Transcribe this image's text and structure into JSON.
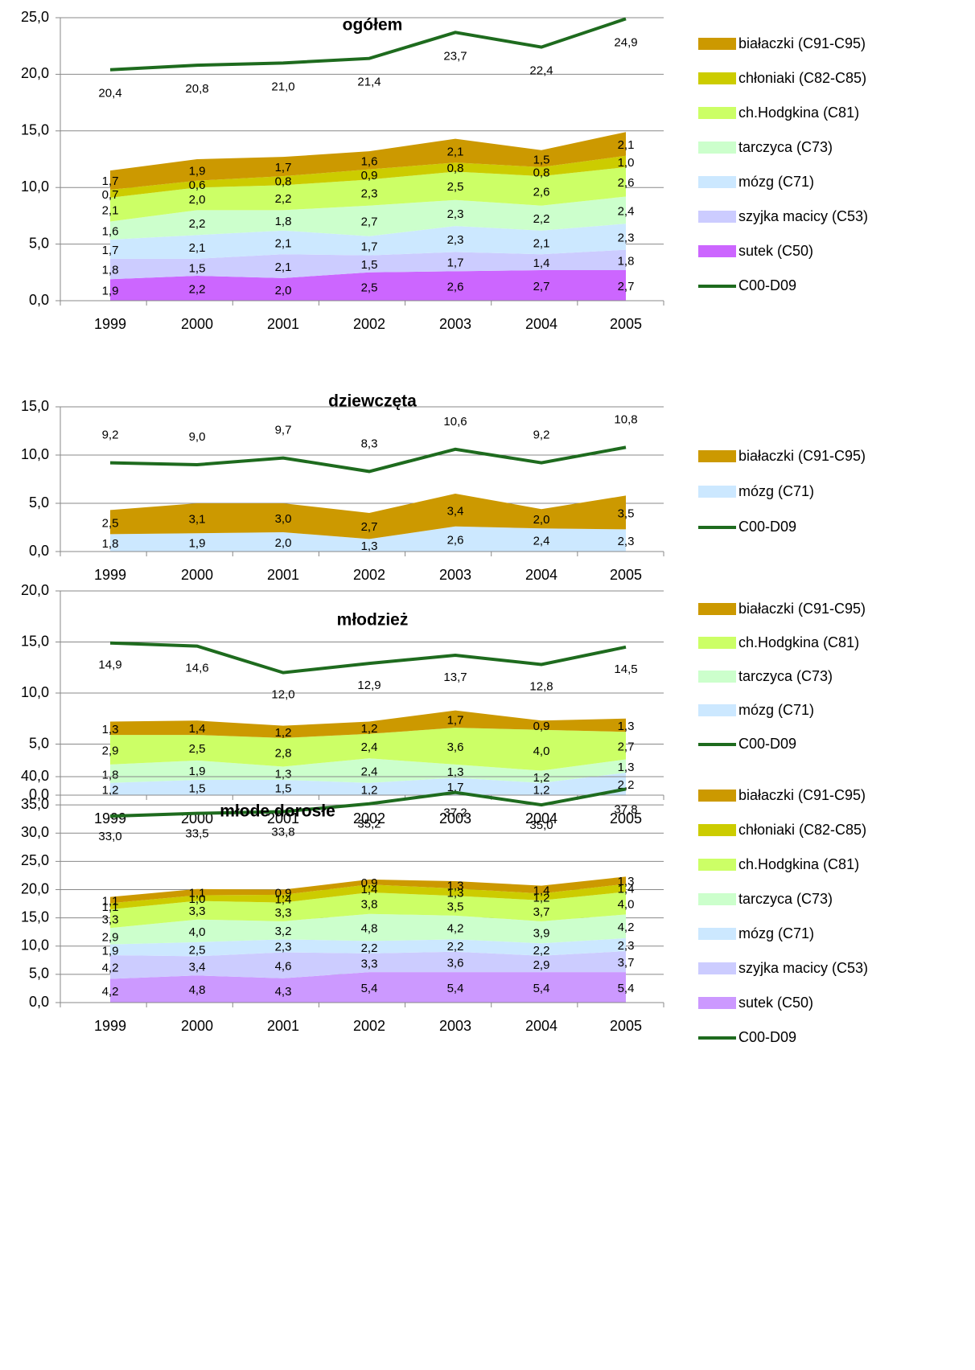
{
  "chart_data": [
    {
      "type": "stacked_area",
      "title": "ogółem",
      "categories": [
        "1999",
        "2000",
        "2001",
        "2002",
        "2003",
        "2004",
        "2005"
      ],
      "ylim": [
        0,
        25
      ],
      "yticks": [
        {
          "value": 0,
          "label": "0,0"
        },
        {
          "value": 5,
          "label": "5,0"
        },
        {
          "value": 10,
          "label": "10,0"
        },
        {
          "value": 15,
          "label": "15,0"
        },
        {
          "value": 20,
          "label": "20,0"
        },
        {
          "value": 25,
          "label": "25,0"
        }
      ],
      "grid": true,
      "series": [
        {
          "name": "sutek (C50)",
          "color": "#cc66ff",
          "values": [
            1.9,
            2.2,
            2.0,
            2.5,
            2.6,
            2.7,
            2.7
          ],
          "value_labels": [
            "1,9",
            "2,2",
            "2,0",
            "2,5",
            "2,6",
            "2,7",
            "2,7"
          ]
        },
        {
          "name": "szyjka macicy (C53)",
          "color": "#ccccff",
          "values": [
            1.8,
            1.5,
            2.1,
            1.5,
            1.7,
            1.4,
            1.8
          ],
          "value_labels": [
            "1,8",
            "1,5",
            "2,1",
            "1,5",
            "1,7",
            "1,4",
            "1,8"
          ]
        },
        {
          "name": "mózg (C71)",
          "color": "#cce8ff",
          "values": [
            1.7,
            2.1,
            2.1,
            1.7,
            2.3,
            2.1,
            2.3
          ],
          "value_labels": [
            "1,7",
            "2,1",
            "2,1",
            "1,7",
            "2,3",
            "2,1",
            "2,3"
          ]
        },
        {
          "name": "tarczyca (C73)",
          "color": "#ccffcc",
          "values": [
            1.6,
            2.2,
            1.8,
            2.7,
            2.3,
            2.2,
            2.4
          ],
          "value_labels": [
            "1,6",
            "2,2",
            "1,8",
            "2,7",
            "2,3",
            "2,2",
            "2,4"
          ]
        },
        {
          "name": "ch.Hodgkina (C81)",
          "color": "#ccff66",
          "values": [
            2.1,
            2.0,
            2.2,
            2.3,
            2.5,
            2.6,
            2.6
          ],
          "value_labels": [
            "2,1",
            "2,0",
            "2,2",
            "2,3",
            "2,5",
            "2,6",
            "2,6"
          ]
        },
        {
          "name": "chłoniaki (C82-C85)",
          "color": "#cccc00",
          "values": [
            0.7,
            0.6,
            0.8,
            0.9,
            0.8,
            0.8,
            1.0
          ],
          "value_labels": [
            "0,7",
            "0,6",
            "0,8",
            "0,9",
            "0,8",
            "0,8",
            "1,0"
          ]
        },
        {
          "name": "białaczki (C91-C95)",
          "color": "#cc9900",
          "values": [
            1.7,
            1.9,
            1.7,
            1.6,
            2.1,
            1.5,
            2.1
          ],
          "value_labels": [
            "1,7",
            "1,9",
            "1,7",
            "1,6",
            "2,1",
            "1,5",
            "2,1"
          ]
        },
        {
          "name": "C00-D09",
          "type": "line",
          "color": "#1e6b1e",
          "values": [
            20.4,
            20.8,
            21.0,
            21.4,
            23.7,
            22.4,
            24.9
          ],
          "value_labels": [
            "20,4",
            "20,8",
            "21,0",
            "21,4",
            "23,7",
            "22,4",
            "24,9"
          ]
        }
      ]
    },
    {
      "type": "stacked_area",
      "title": "dziewczęta",
      "categories": [
        "1999",
        "2000",
        "2001",
        "2002",
        "2003",
        "2004",
        "2005"
      ],
      "ylim": [
        0,
        15
      ],
      "yticks": [
        {
          "value": 0,
          "label": "0,0"
        },
        {
          "value": 5,
          "label": "5,0"
        },
        {
          "value": 10,
          "label": "10,0"
        },
        {
          "value": 15,
          "label": "15,0"
        }
      ],
      "grid": true,
      "series": [
        {
          "name": "mózg (C71)",
          "color": "#cce8ff",
          "values": [
            1.8,
            1.9,
            2.0,
            1.3,
            2.6,
            2.4,
            2.3
          ],
          "value_labels": [
            "1,8",
            "1,9",
            "2,0",
            "1,3",
            "2,6",
            "2,4",
            "2,3"
          ]
        },
        {
          "name": "białaczki (C91-C95)",
          "color": "#cc9900",
          "values": [
            2.5,
            3.1,
            3.0,
            2.7,
            3.4,
            2.0,
            3.5
          ],
          "value_labels": [
            "2,5",
            "3,1",
            "3,0",
            "2,7",
            "3,4",
            "2,0",
            "3,5"
          ]
        },
        {
          "name": "C00-D09",
          "type": "line",
          "color": "#1e6b1e",
          "values": [
            9.2,
            9.0,
            9.7,
            8.3,
            10.6,
            9.2,
            10.8
          ],
          "value_labels": [
            "9,2",
            "9,0",
            "9,7",
            "8,3",
            "10,6",
            "9,2",
            "10,8"
          ]
        }
      ]
    },
    {
      "type": "stacked_area",
      "title": "młodzież",
      "categories": [
        "1999",
        "2000",
        "2001",
        "2002",
        "2003",
        "2004",
        "2005"
      ],
      "ylim": [
        0,
        20
      ],
      "yticks": [
        {
          "value": 0,
          "label": "0,0"
        },
        {
          "value": 5,
          "label": "5,0"
        },
        {
          "value": 10,
          "label": "10,0"
        },
        {
          "value": 15,
          "label": "15,0"
        },
        {
          "value": 20,
          "label": "20,0"
        }
      ],
      "grid": true,
      "series": [
        {
          "name": "mózg (C71)",
          "color": "#cce8ff",
          "values": [
            1.2,
            1.5,
            1.5,
            1.2,
            1.7,
            1.2,
            2.2
          ],
          "value_labels": [
            "1,2",
            "1,5",
            "1,5",
            "1,2",
            "1,7",
            "1,2",
            "2,2"
          ]
        },
        {
          "name": "tarczyca (C73)",
          "color": "#ccffcc",
          "values": [
            1.8,
            1.9,
            1.3,
            2.4,
            1.3,
            1.2,
            1.3
          ],
          "value_labels": [
            "1,8",
            "1,9",
            "1,3",
            "2,4",
            "1,3",
            "1,2",
            "1,3"
          ]
        },
        {
          "name": "ch.Hodgkina (C81)",
          "color": "#ccff66",
          "values": [
            2.9,
            2.5,
            2.8,
            2.4,
            3.6,
            4.0,
            2.7
          ],
          "value_labels": [
            "2,9",
            "2,5",
            "2,8",
            "2,4",
            "3,6",
            "4,0",
            "2,7"
          ]
        },
        {
          "name": "białaczki (C91-C95)",
          "color": "#cc9900",
          "values": [
            1.3,
            1.4,
            1.2,
            1.2,
            1.7,
            0.9,
            1.3
          ],
          "value_labels": [
            "1,3",
            "1,4",
            "1,2",
            "1,2",
            "1,7",
            "0,9",
            "1,3"
          ]
        },
        {
          "name": "C00-D09",
          "type": "line",
          "color": "#1e6b1e",
          "values": [
            14.9,
            14.6,
            12.0,
            12.9,
            13.7,
            12.8,
            14.5
          ],
          "value_labels": [
            "14,9",
            "14,6",
            "12,0",
            "12,9",
            "13,7",
            "12,8",
            "14,5"
          ]
        }
      ]
    },
    {
      "type": "stacked_area",
      "title": "młode dorosłe",
      "categories": [
        "1999",
        "2000",
        "2001",
        "2002",
        "2003",
        "2004",
        "2005"
      ],
      "ylim": [
        0,
        40
      ],
      "yticks": [
        {
          "value": 0,
          "label": "0,0"
        },
        {
          "value": 5,
          "label": "5,0"
        },
        {
          "value": 10,
          "label": "10,0"
        },
        {
          "value": 15,
          "label": "15,0"
        },
        {
          "value": 20,
          "label": "20,0"
        },
        {
          "value": 25,
          "label": "25,0"
        },
        {
          "value": 30,
          "label": "30,0"
        },
        {
          "value": 35,
          "label": "35,0"
        },
        {
          "value": 40,
          "label": "40,0"
        }
      ],
      "grid": true,
      "series": [
        {
          "name": "sutek (C50)",
          "color": "#cc99ff",
          "values": [
            4.2,
            4.8,
            4.3,
            5.4,
            5.4,
            5.4,
            5.4
          ],
          "value_labels": [
            "4,2",
            "4,8",
            "4,3",
            "5,4",
            "5,4",
            "5,4",
            "5,4"
          ]
        },
        {
          "name": "szyjka macicy (C53)",
          "color": "#ccccff",
          "values": [
            4.2,
            3.4,
            4.6,
            3.3,
            3.6,
            2.9,
            3.7
          ],
          "value_labels": [
            "4,2",
            "3,4",
            "4,6",
            "3,3",
            "3,6",
            "2,9",
            "3,7"
          ]
        },
        {
          "name": "mózg (C71)",
          "color": "#cce8ff",
          "values": [
            1.9,
            2.5,
            2.3,
            2.2,
            2.2,
            2.2,
            2.3
          ],
          "value_labels": [
            "1,9",
            "2,5",
            "2,3",
            "2,2",
            "2,2",
            "2,2",
            "2,3"
          ]
        },
        {
          "name": "tarczyca (C73)",
          "color": "#ccffcc",
          "values": [
            2.9,
            4.0,
            3.2,
            4.8,
            4.2,
            3.9,
            4.2
          ],
          "value_labels": [
            "2,9",
            "4,0",
            "3,2",
            "4,8",
            "4,2",
            "3,9",
            "4,2"
          ]
        },
        {
          "name": "ch.Hodgkina (C81)",
          "color": "#ccff66",
          "values": [
            3.3,
            3.3,
            3.3,
            3.8,
            3.5,
            3.7,
            4.0
          ],
          "value_labels": [
            "3,3",
            "3,3",
            "3,3",
            "3,8",
            "3,5",
            "3,7",
            "4,0"
          ]
        },
        {
          "name": "chłoniaki (C82-C85)",
          "color": "#cccc00",
          "values": [
            1.1,
            1.0,
            1.4,
            1.4,
            1.3,
            1.2,
            1.4
          ],
          "value_labels": [
            "1,1",
            "1,0",
            "1,4",
            "1,4",
            "1,3",
            "1,2",
            "1,4"
          ]
        },
        {
          "name": "białaczki (C91-C95)",
          "color": "#cc9900",
          "values": [
            1.1,
            1.1,
            0.9,
            0.9,
            1.3,
            1.4,
            1.3
          ],
          "value_labels": [
            "1,1",
            "1,1",
            "0,9",
            "0,9",
            "1,3",
            "1,4",
            "1,3"
          ]
        },
        {
          "name": "C00-D09",
          "type": "line",
          "color": "#1e6b1e",
          "values": [
            33.0,
            33.5,
            33.8,
            35.2,
            37.2,
            35.0,
            37.8
          ],
          "value_labels": [
            "33,0",
            "33,5",
            "33,8",
            "35,2",
            "37,2",
            "35,0",
            "37,8"
          ]
        }
      ]
    }
  ]
}
